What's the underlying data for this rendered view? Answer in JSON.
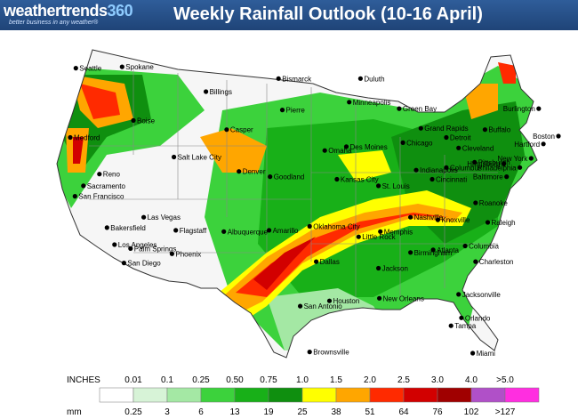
{
  "header": {
    "logo_left": "weathertrends",
    "logo_right": "360",
    "tagline": "better business in any weather®",
    "title": "Weekly Rainfall Outlook (10-16 April)"
  },
  "cities": [
    {
      "name": "Seattle",
      "lon": -122.3,
      "lat": 47.6
    },
    {
      "name": "Spokane",
      "lon": -117.4,
      "lat": 47.7
    },
    {
      "name": "Medford",
      "lon": -122.9,
      "lat": 42.3
    },
    {
      "name": "Boise",
      "lon": -116.2,
      "lat": 43.6
    },
    {
      "name": "Billings",
      "lon": -108.5,
      "lat": 45.8
    },
    {
      "name": "Bismarck",
      "lon": -100.8,
      "lat": 46.8
    },
    {
      "name": "Duluth",
      "lon": -92.1,
      "lat": 46.8
    },
    {
      "name": "Burlington",
      "lon": -73.2,
      "lat": 44.5
    },
    {
      "name": "Boston",
      "lon": -71.1,
      "lat": 42.4
    },
    {
      "name": "Hartford",
      "lon": -72.7,
      "lat": 41.8
    },
    {
      "name": "Buffalo",
      "lon": -78.9,
      "lat": 42.9
    },
    {
      "name": "New York",
      "lon": -74.0,
      "lat": 40.7
    },
    {
      "name": "Philadelphia",
      "lon": -75.2,
      "lat": 40.0
    },
    {
      "name": "Baltimore",
      "lon": -76.6,
      "lat": 39.3
    },
    {
      "name": "Harrisburg",
      "lon": -76.9,
      "lat": 40.3
    },
    {
      "name": "Sacramento",
      "lon": -121.5,
      "lat": 38.6
    },
    {
      "name": "Reno",
      "lon": -119.8,
      "lat": 39.5
    },
    {
      "name": "San Francisco",
      "lon": -122.4,
      "lat": 37.8
    },
    {
      "name": "Casper",
      "lon": -106.3,
      "lat": 42.9
    },
    {
      "name": "Pierre",
      "lon": -100.4,
      "lat": 44.4
    },
    {
      "name": "Minneapolis",
      "lon": -93.3,
      "lat": 45.0
    },
    {
      "name": "Green Bay",
      "lon": -88.0,
      "lat": 44.5
    },
    {
      "name": "Grand Rapids",
      "lon": -85.7,
      "lat": 43.0
    },
    {
      "name": "Detroit",
      "lon": -83.0,
      "lat": 42.3
    },
    {
      "name": "Cleveland",
      "lon": -81.7,
      "lat": 41.5
    },
    {
      "name": "Pittsburgh",
      "lon": -80.0,
      "lat": 40.4
    },
    {
      "name": "Columbus",
      "lon": -83.0,
      "lat": 40.0
    },
    {
      "name": "Chicago",
      "lon": -87.6,
      "lat": 41.9
    },
    {
      "name": "Des Moines",
      "lon": -93.6,
      "lat": 41.6
    },
    {
      "name": "Omaha",
      "lon": -95.9,
      "lat": 41.3
    },
    {
      "name": "Salt Lake City",
      "lon": -111.9,
      "lat": 40.8
    },
    {
      "name": "Denver",
      "lon": -105.0,
      "lat": 39.7
    },
    {
      "name": "Goodland",
      "lon": -101.7,
      "lat": 39.3
    },
    {
      "name": "Kansas City",
      "lon": -94.6,
      "lat": 39.1
    },
    {
      "name": "St. Louis",
      "lon": -90.2,
      "lat": 38.6
    },
    {
      "name": "Indianapolis",
      "lon": -86.2,
      "lat": 39.8
    },
    {
      "name": "Cincinnati",
      "lon": -84.5,
      "lat": 39.1
    },
    {
      "name": "Roanoke",
      "lon": -79.9,
      "lat": 37.3
    },
    {
      "name": "Raleigh",
      "lon": -78.6,
      "lat": 35.8
    },
    {
      "name": "Bakersfield",
      "lon": -119.0,
      "lat": 35.4
    },
    {
      "name": "Las Vegas",
      "lon": -115.1,
      "lat": 36.2
    },
    {
      "name": "Los Angeles",
      "lon": -118.2,
      "lat": 34.1
    },
    {
      "name": "Palm Springs",
      "lon": -116.5,
      "lat": 33.8
    },
    {
      "name": "San Diego",
      "lon": -117.2,
      "lat": 32.7
    },
    {
      "name": "Phoenix",
      "lon": -112.1,
      "lat": 33.4
    },
    {
      "name": "Flagstaff",
      "lon": -111.7,
      "lat": 35.2
    },
    {
      "name": "Albuquerque",
      "lon": -106.6,
      "lat": 35.1
    },
    {
      "name": "Amarillo",
      "lon": -101.8,
      "lat": 35.2
    },
    {
      "name": "Oklahoma City",
      "lon": -97.5,
      "lat": 35.5
    },
    {
      "name": "Little Rock",
      "lon": -92.3,
      "lat": 34.7
    },
    {
      "name": "Memphis",
      "lon": -90.0,
      "lat": 35.1
    },
    {
      "name": "Nashville",
      "lon": -86.8,
      "lat": 36.2
    },
    {
      "name": "Knoxville",
      "lon": -83.9,
      "lat": 36.0
    },
    {
      "name": "Atlanta",
      "lon": -84.4,
      "lat": 33.7
    },
    {
      "name": "Birmingham",
      "lon": -86.8,
      "lat": 33.5
    },
    {
      "name": "Columbia",
      "lon": -81.0,
      "lat": 34.0
    },
    {
      "name": "Charleston",
      "lon": -79.9,
      "lat": 32.8
    },
    {
      "name": "Dallas",
      "lon": -96.8,
      "lat": 32.8
    },
    {
      "name": "Jackson",
      "lon": -90.2,
      "lat": 32.3
    },
    {
      "name": "San Antonio",
      "lon": -98.5,
      "lat": 29.4
    },
    {
      "name": "Houston",
      "lon": -95.4,
      "lat": 29.8
    },
    {
      "name": "New Orleans",
      "lon": -90.1,
      "lat": 30.0
    },
    {
      "name": "Jacksonville",
      "lon": -81.7,
      "lat": 30.3
    },
    {
      "name": "Orlando",
      "lon": -81.4,
      "lat": 28.5
    },
    {
      "name": "Tampa",
      "lon": -82.5,
      "lat": 27.9
    },
    {
      "name": "Miami",
      "lon": -80.2,
      "lat": 25.8
    },
    {
      "name": "Brownsville",
      "lon": -97.5,
      "lat": 25.9
    }
  ],
  "legend": {
    "inches_label": "INCHES",
    "mm_label": "mm",
    "inches": [
      "0.01",
      "0.1",
      "0.25",
      "0.50",
      "0.75",
      "1.0",
      "1.5",
      "2.0",
      "2.5",
      "3.0",
      "4.0",
      ">5.0"
    ],
    "mm": [
      "0.25",
      "3",
      "6",
      "13",
      "19",
      "25",
      "38",
      "51",
      "64",
      "76",
      "102",
      ">127"
    ],
    "colors": [
      "#ffffff",
      "#d7f3d7",
      "#a4e8a4",
      "#3cd23c",
      "#18b018",
      "#0f8f0f",
      "#ffff00",
      "#ffa600",
      "#ff2a00",
      "#d20000",
      "#a00000",
      "#b050c8",
      "#ff2ee0"
    ]
  }
}
